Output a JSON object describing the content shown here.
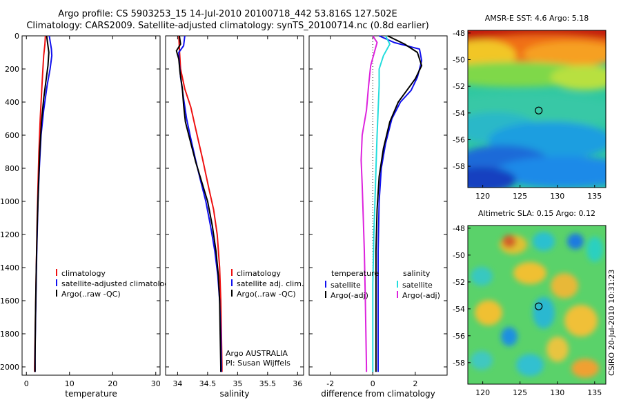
{
  "title": {
    "line1": "Argo profile: CS 5903253_15 14-Jul-2010 20100718_442 53.816S 127.502E",
    "line2": "Climatology: CARS2009. Satellite-adjusted climatology: synTS_20100714.nc (0.8d earlier)"
  },
  "footer_label": "CSIRO 20-Jul-2010 10:31:23",
  "colors": {
    "climatology": "#ee1111",
    "satellite": "#1010ee",
    "argo": "#000000",
    "sat_salinity": "#22dddd",
    "argo_salinity": "#dd22dd"
  },
  "chart_data": [
    {
      "type": "line",
      "panel": "temperature",
      "xlabel": "temperature",
      "ylabel": "",
      "xlim": [
        -1,
        31
      ],
      "ylim": [
        2050,
        0
      ],
      "y_inverted": true,
      "xticks": [
        "0",
        "10",
        "20",
        "30"
      ],
      "yticks": [
        "0",
        "200",
        "400",
        "600",
        "800",
        "1000",
        "1200",
        "1400",
        "1600",
        "1800",
        "2000"
      ],
      "legend": [
        "climatology",
        "satellite-adjusted climatolog",
        "Argo(..raw -QC)"
      ],
      "series": [
        {
          "name": "climatology",
          "color_key": "climatology",
          "points": [
            [
              4.4,
              0
            ],
            [
              4.3,
              50
            ],
            [
              4.0,
              120
            ],
            [
              3.6,
              300
            ],
            [
              3.2,
              500
            ],
            [
              2.9,
              700
            ],
            [
              2.7,
              900
            ],
            [
              2.5,
              1100
            ],
            [
              2.3,
              1400
            ],
            [
              2.1,
              1700
            ],
            [
              1.9,
              2000
            ],
            [
              1.9,
              2030
            ]
          ]
        },
        {
          "name": "satellite-adjusted climatolog",
          "color_key": "satellite",
          "points": [
            [
              5.3,
              0
            ],
            [
              5.8,
              80
            ],
            [
              5.9,
              120
            ],
            [
              5.5,
              200
            ],
            [
              4.8,
              300
            ],
            [
              4.0,
              450
            ],
            [
              3.4,
              600
            ],
            [
              3.0,
              800
            ],
            [
              2.7,
              1000
            ],
            [
              2.4,
              1300
            ],
            [
              2.2,
              1600
            ],
            [
              2.0,
              1900
            ],
            [
              2.0,
              2030
            ]
          ]
        },
        {
          "name": "Argo(..raw -QC)",
          "color_key": "argo",
          "points": [
            [
              4.7,
              0
            ],
            [
              5.0,
              60
            ],
            [
              5.2,
              100
            ],
            [
              5.0,
              180
            ],
            [
              4.6,
              260
            ],
            [
              4.0,
              380
            ],
            [
              3.5,
              520
            ],
            [
              3.1,
              700
            ],
            [
              2.8,
              900
            ],
            [
              2.5,
              1150
            ],
            [
              2.3,
              1400
            ],
            [
              2.1,
              1700
            ],
            [
              2.0,
              1950
            ],
            [
              2.0,
              2030
            ]
          ]
        }
      ]
    },
    {
      "type": "line",
      "panel": "salinity",
      "xlabel": "salinity",
      "ylabel": "",
      "xlim": [
        33.8,
        36.1
      ],
      "ylim": [
        2050,
        0
      ],
      "y_inverted": true,
      "xticks": [
        "34",
        "34.5",
        "35",
        "35.5",
        "36"
      ],
      "legend": [
        "climatology",
        "satellite adj. clim.",
        "Argo(..raw -QC)"
      ],
      "annotations": [
        "Argo AUSTRALIA",
        "PI: Susan Wijffels"
      ],
      "series": [
        {
          "name": "climatology",
          "color_key": "climatology",
          "points": [
            [
              34.02,
              0
            ],
            [
              34.03,
              80
            ],
            [
              34.05,
              200
            ],
            [
              34.12,
              320
            ],
            [
              34.22,
              430
            ],
            [
              34.3,
              560
            ],
            [
              34.42,
              750
            ],
            [
              34.52,
              920
            ],
            [
              34.6,
              1050
            ],
            [
              34.66,
              1200
            ],
            [
              34.7,
              1400
            ],
            [
              34.72,
              1600
            ],
            [
              34.73,
              1800
            ],
            [
              34.74,
              2000
            ],
            [
              34.74,
              2030
            ]
          ]
        },
        {
          "name": "satellite adj. clim.",
          "color_key": "satellite",
          "points": [
            [
              34.12,
              0
            ],
            [
              34.1,
              60
            ],
            [
              34.02,
              100
            ],
            [
              34.03,
              170
            ],
            [
              34.05,
              250
            ],
            [
              34.1,
              380
            ],
            [
              34.15,
              500
            ],
            [
              34.22,
              620
            ],
            [
              34.3,
              750
            ],
            [
              34.38,
              870
            ],
            [
              34.47,
              1000
            ],
            [
              34.55,
              1150
            ],
            [
              34.62,
              1300
            ],
            [
              34.67,
              1450
            ],
            [
              34.7,
              1600
            ],
            [
              34.72,
              1800
            ],
            [
              34.73,
              2000
            ],
            [
              34.73,
              2030
            ]
          ]
        },
        {
          "name": "Argo(..raw -QC)",
          "color_key": "argo",
          "points": [
            [
              34.03,
              0
            ],
            [
              34.05,
              50
            ],
            [
              33.98,
              90
            ],
            [
              34.02,
              140
            ],
            [
              34.04,
              220
            ],
            [
              34.08,
              320
            ],
            [
              34.1,
              420
            ],
            [
              34.13,
              520
            ],
            [
              34.2,
              620
            ],
            [
              34.3,
              760
            ],
            [
              34.4,
              880
            ],
            [
              34.5,
              1000
            ],
            [
              34.58,
              1150
            ],
            [
              34.64,
              1300
            ],
            [
              34.68,
              1450
            ],
            [
              34.7,
              1600
            ],
            [
              34.71,
              1800
            ],
            [
              34.72,
              2000
            ],
            [
              34.72,
              2030
            ]
          ]
        }
      ]
    },
    {
      "type": "line",
      "panel": "difference",
      "xlabel": "difference from climatology",
      "ylabel": "",
      "xlim": [
        -3,
        3.5
      ],
      "ylim": [
        2050,
        0
      ],
      "y_inverted": true,
      "xticks": [
        "-2",
        "0",
        "2"
      ],
      "legend_groups": [
        {
          "heading": "temperature",
          "entries": [
            "satellite",
            "Argo(-adj)"
          ]
        },
        {
          "heading": "salinity",
          "entries": [
            "satellite",
            "Argo(-adj)"
          ]
        }
      ],
      "series": [
        {
          "name": "temperature satellite",
          "color_key": "satellite",
          "points": [
            [
              0.3,
              0
            ],
            [
              1.0,
              40
            ],
            [
              2.2,
              80
            ],
            [
              2.3,
              150
            ],
            [
              2.1,
              250
            ],
            [
              1.8,
              330
            ],
            [
              1.3,
              400
            ],
            [
              0.9,
              500
            ],
            [
              0.6,
              650
            ],
            [
              0.4,
              800
            ],
            [
              0.3,
              1000
            ],
            [
              0.25,
              1300
            ],
            [
              0.25,
              1600
            ],
            [
              0.25,
              2000
            ],
            [
              0.25,
              2030
            ]
          ]
        },
        {
          "name": "temperature Argo(-adj)",
          "color_key": "argo",
          "points": [
            [
              0.7,
              0
            ],
            [
              1.5,
              50
            ],
            [
              2.1,
              100
            ],
            [
              2.3,
              180
            ],
            [
              2.0,
              260
            ],
            [
              1.6,
              330
            ],
            [
              1.2,
              400
            ],
            [
              0.8,
              520
            ],
            [
              0.5,
              680
            ],
            [
              0.3,
              850
            ],
            [
              0.2,
              1050
            ],
            [
              0.15,
              1300
            ],
            [
              0.15,
              1600
            ],
            [
              0.15,
              2000
            ],
            [
              0.15,
              2030
            ]
          ]
        },
        {
          "name": "salinity satellite",
          "color_key": "sat_salinity",
          "points": [
            [
              0.6,
              0
            ],
            [
              0.8,
              50
            ],
            [
              0.5,
              120
            ],
            [
              0.3,
              200
            ],
            [
              0.3,
              300
            ],
            [
              0.25,
              450
            ],
            [
              0.2,
              600
            ],
            [
              0.15,
              800
            ],
            [
              0.1,
              1000
            ],
            [
              0.05,
              1200
            ],
            [
              0.0,
              1500
            ],
            [
              0.0,
              1800
            ],
            [
              0.0,
              2030
            ]
          ]
        },
        {
          "name": "salinity Argo(-adj)",
          "color_key": "argo_salinity",
          "points": [
            [
              0.0,
              0
            ],
            [
              0.2,
              40
            ],
            [
              -0.1,
              180
            ],
            [
              -0.2,
              300
            ],
            [
              -0.3,
              450
            ],
            [
              -0.5,
              600
            ],
            [
              -0.55,
              750
            ],
            [
              -0.5,
              900
            ],
            [
              -0.45,
              1100
            ],
            [
              -0.4,
              1300
            ],
            [
              -0.35,
              1600
            ],
            [
              -0.3,
              2000
            ],
            [
              -0.3,
              2030
            ]
          ]
        }
      ]
    },
    {
      "type": "heatmap",
      "panel": "sst_map",
      "title": "AMSR-E SST: 4.6 Argo: 5.18",
      "xlim": [
        118,
        136.5
      ],
      "ylim": [
        -59.6,
        -47.8
      ],
      "xticks": [
        "120",
        "125",
        "130",
        "135"
      ],
      "yticks": [
        "-48",
        "-50",
        "-52",
        "-54",
        "-56",
        "-58"
      ],
      "marker": {
        "lon": 127.5,
        "lat": -53.816
      }
    },
    {
      "type": "heatmap",
      "panel": "sla_map",
      "title": "Altimetric SLA: 0.15 Argo: 0.12",
      "xlim": [
        118,
        136.5
      ],
      "ylim": [
        -59.6,
        -47.8
      ],
      "xticks": [
        "120",
        "125",
        "130",
        "135"
      ],
      "yticks": [
        "-48",
        "-50",
        "-52",
        "-54",
        "-56",
        "-58"
      ],
      "marker": {
        "lon": 127.5,
        "lat": -53.816
      }
    }
  ]
}
